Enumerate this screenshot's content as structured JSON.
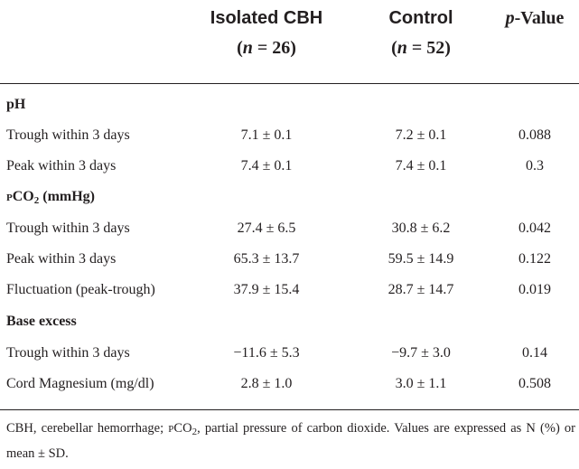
{
  "header": {
    "col1_title": "Isolated CBH",
    "col1_n_label": "n",
    "col1_n_value": "= 26",
    "col2_title": "Control",
    "col2_n_label": "n",
    "col2_n_value": "= 52",
    "col3_title_italic": "p",
    "col3_title_rest": "-Value"
  },
  "sections": {
    "ph": "pH",
    "pco2_prefix": "P",
    "pco2_main": "CO",
    "pco2_sub": "2",
    "pco2_unit": "(mmHg)",
    "base_excess": "Base excess"
  },
  "rows": [
    {
      "label": "Trough within 3 days",
      "cbh": "7.1 ± 0.1",
      "control": "7.2 ± 0.1",
      "p": "0.088"
    },
    {
      "label": "Peak within 3 days",
      "cbh": "7.4 ± 0.1",
      "control": "7.4 ± 0.1",
      "p": "0.3"
    },
    {
      "label": "Trough within 3 days",
      "cbh": "27.4 ± 6.5",
      "control": "30.8 ± 6.2",
      "p": "0.042"
    },
    {
      "label": "Peak within 3 days",
      "cbh": "65.3 ± 13.7",
      "control": "59.5 ± 14.9",
      "p": "0.122"
    },
    {
      "label": "Fluctuation (peak-trough)",
      "cbh": "37.9 ± 15.4",
      "control": "28.7 ± 14.7",
      "p": "0.019"
    },
    {
      "label": "Trough within 3 days",
      "cbh": "−11.6 ± 5.3",
      "control": "−9.7 ± 3.0",
      "p": "0.14"
    },
    {
      "label": "Cord Magnesium (mg/dl)",
      "cbh": "2.8 ± 1.0",
      "control": "3.0 ± 1.1",
      "p": "0.508"
    }
  ],
  "footnote": {
    "part1": "CBH, cerebellar hemorrhage; ",
    "pco2_prefix": "P",
    "pco2_main": "CO",
    "pco2_sub": "2",
    "part2": ", partial pressure of carbon dioxide. Values are expressed as N (%) or mean ± SD."
  }
}
